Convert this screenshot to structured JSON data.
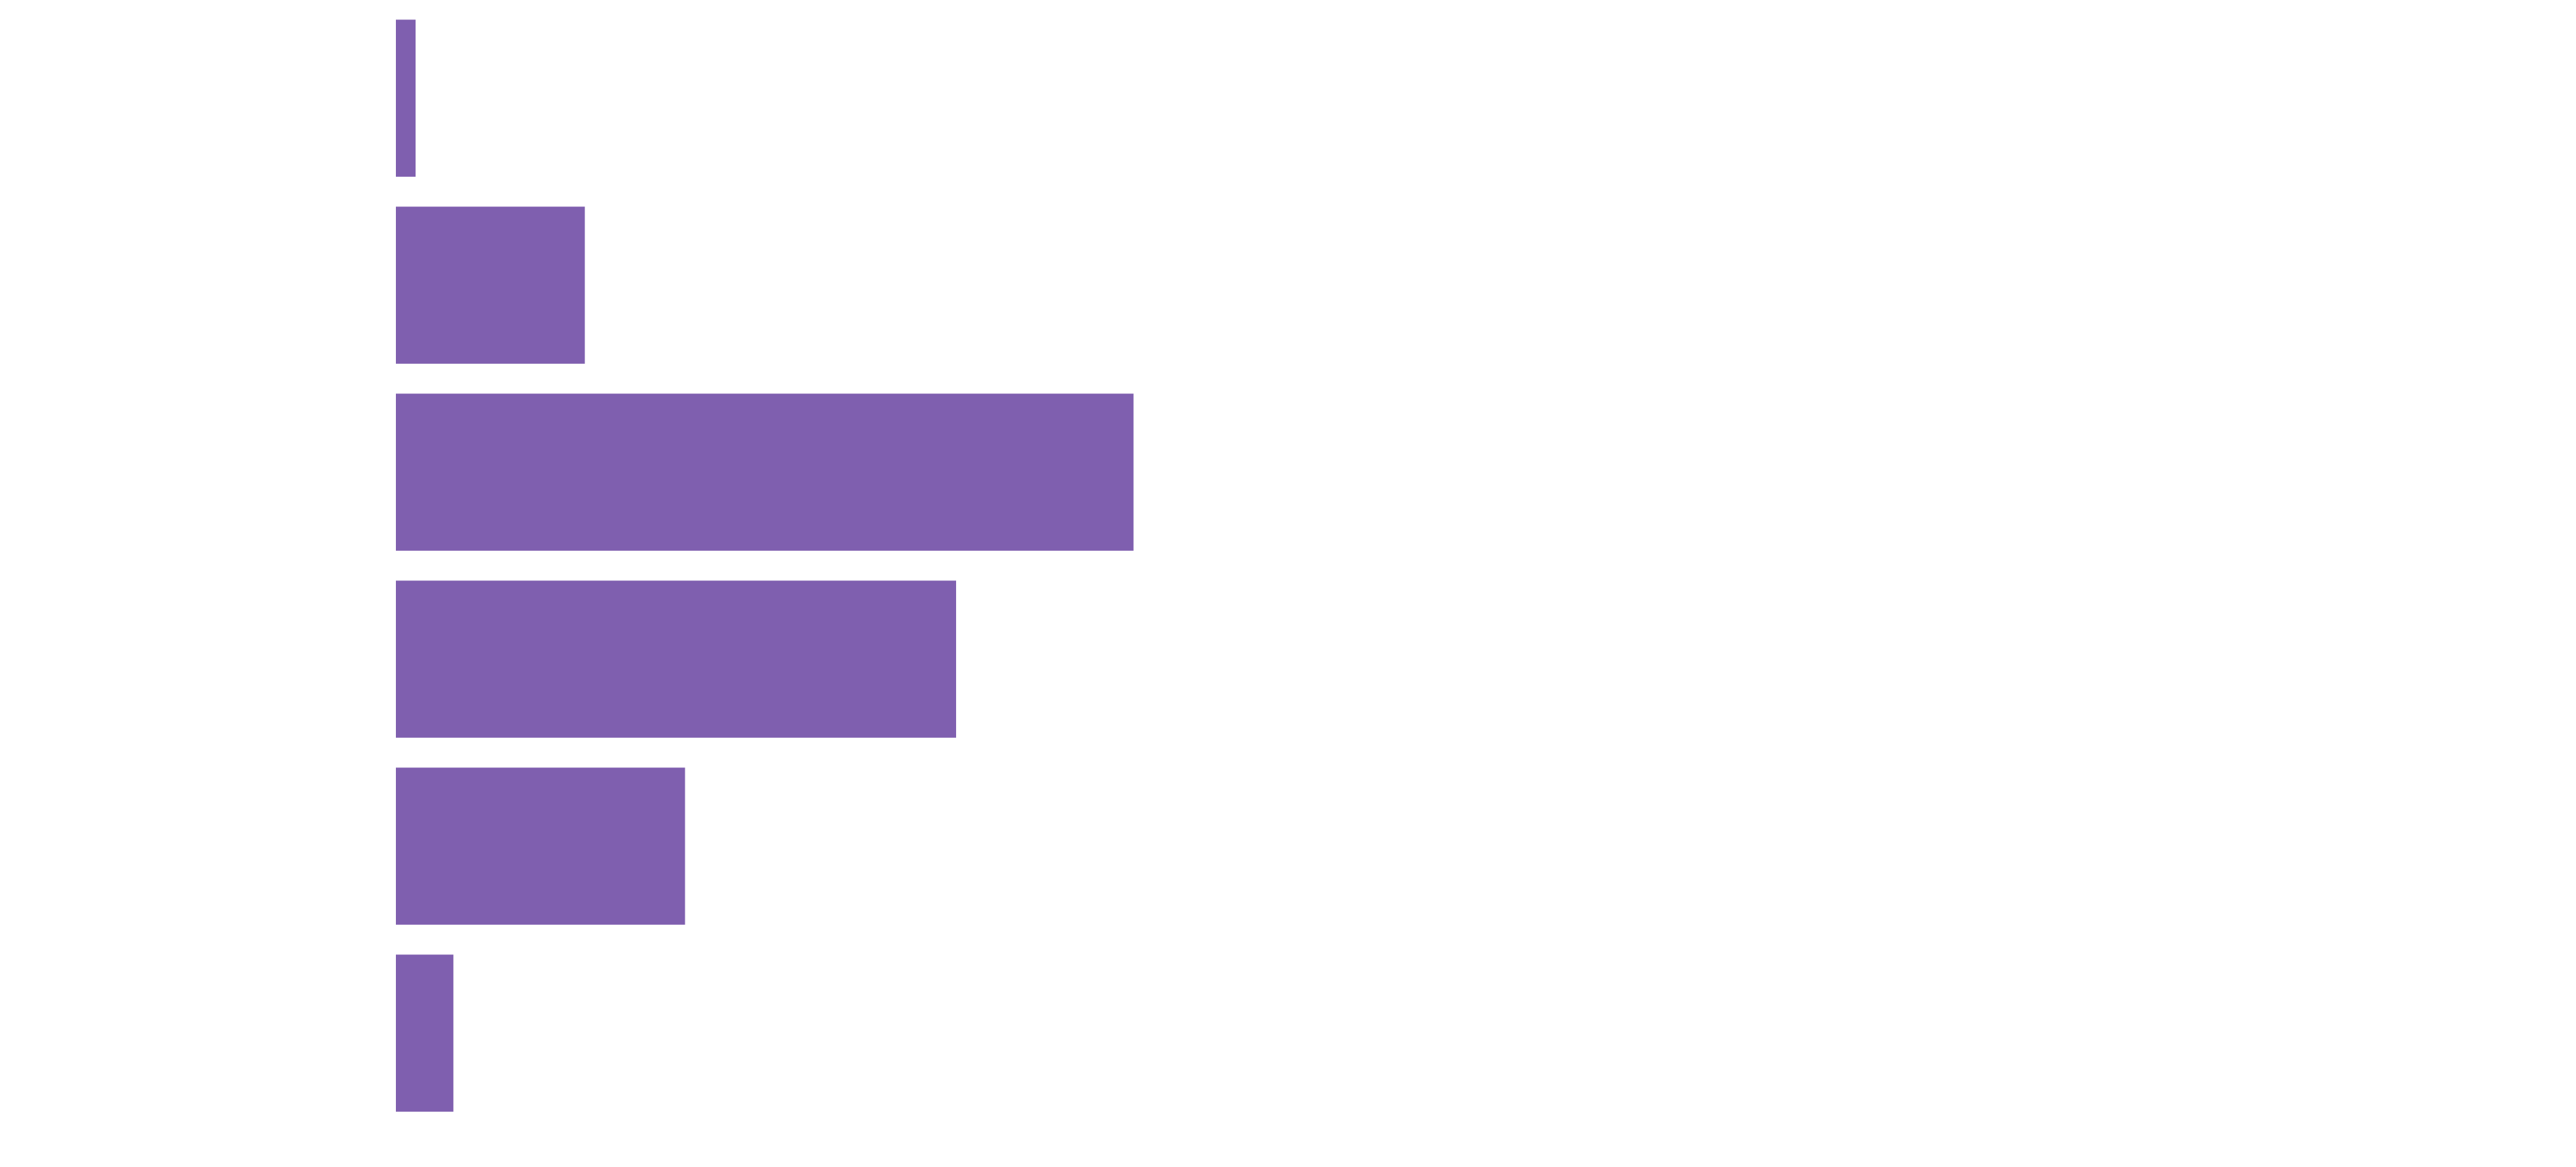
{
  "chart_data": {
    "type": "bar",
    "orientation": "horizontal",
    "categories": [
      null,
      null,
      null,
      null,
      null,
      null
    ],
    "values": [
      12,
      115,
      449,
      341,
      176,
      35
    ],
    "color": "#7f5faf",
    "xlim": [
      0,
      1300
    ]
  }
}
